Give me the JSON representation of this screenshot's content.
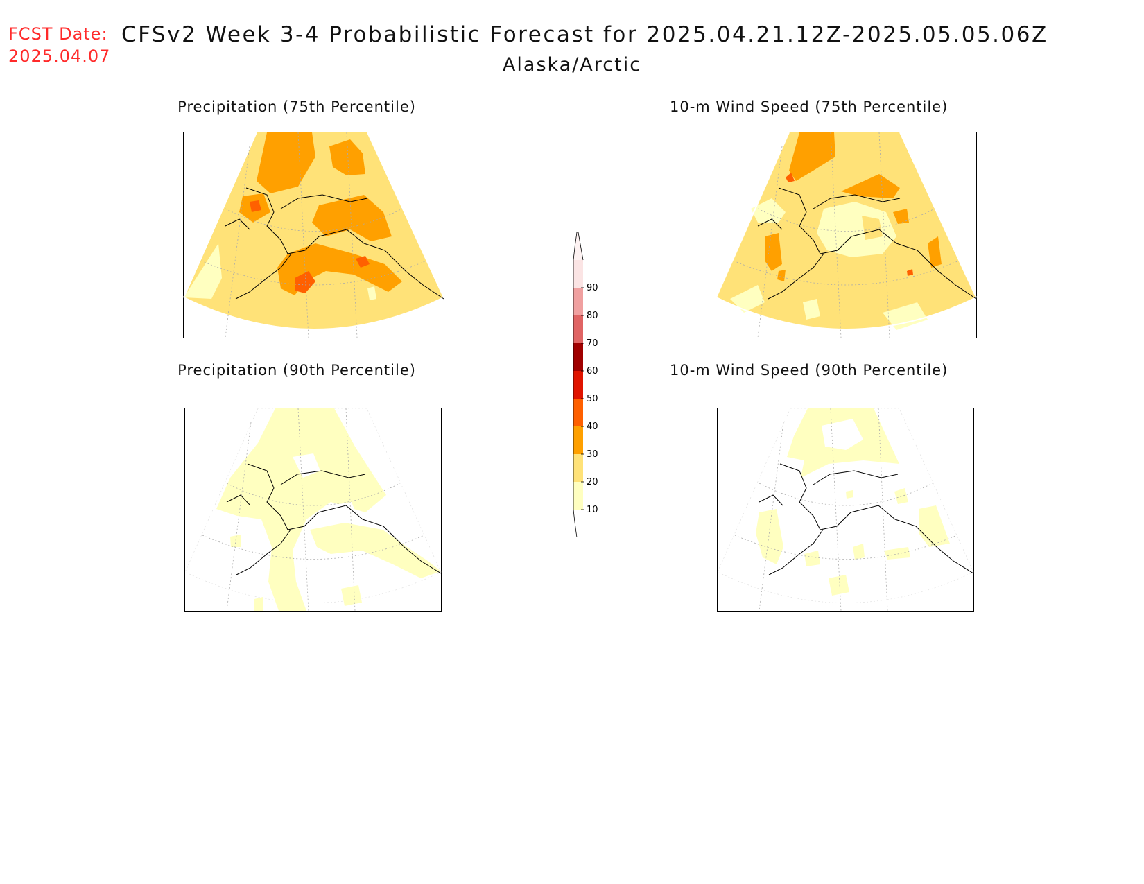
{
  "header": {
    "fcst_label": "FCST Date:",
    "fcst_date": "2025.04.07",
    "title": "CFSv2 Week 3-4 Probabilistic Forecast for 2025.04.21.12Z-2025.05.05.06Z",
    "subtitle": "Alaska/Arctic"
  },
  "panels": [
    {
      "title": "Precipitation (75th Percentile)",
      "background_level": 20,
      "variable": "precipitation",
      "percentile": 75
    },
    {
      "title": "10-m Wind Speed (75th Percentile)",
      "background_level": 20,
      "variable": "wind",
      "percentile": 75
    },
    {
      "title": "Precipitation (90th Percentile)",
      "background_level": 10,
      "variable": "precipitation",
      "percentile": 90
    },
    {
      "title": "10-m Wind Speed (90th Percentile)",
      "background_level": 0,
      "variable": "wind",
      "percentile": 90
    }
  ],
  "colorbar": {
    "ticks": [
      10,
      20,
      30,
      40,
      50,
      60,
      70,
      80,
      90
    ],
    "levels": [
      {
        "from": 10,
        "to": 20,
        "color": "#ffffc0"
      },
      {
        "from": 20,
        "to": 30,
        "color": "#ffe278"
      },
      {
        "from": 30,
        "to": 40,
        "color": "#ffa000"
      },
      {
        "from": 40,
        "to": 50,
        "color": "#ff6000"
      },
      {
        "from": 50,
        "to": 60,
        "color": "#e01400"
      },
      {
        "from": 60,
        "to": 70,
        "color": "#a00000"
      },
      {
        "from": 70,
        "to": 80,
        "color": "#e06464"
      },
      {
        "from": 80,
        "to": 90,
        "color": "#f0a0a0"
      },
      {
        "from": 90,
        "to": 100,
        "color": "#fbe4e4"
      }
    ]
  }
}
